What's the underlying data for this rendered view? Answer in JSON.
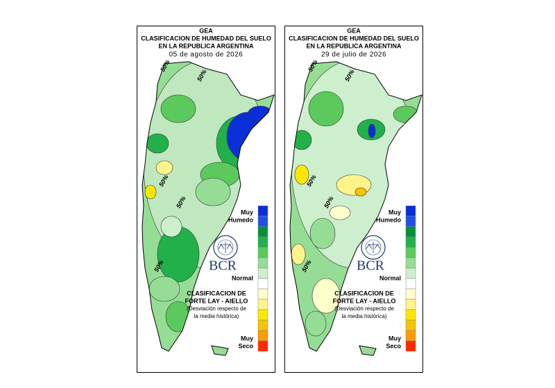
{
  "legend_colors": [
    "#0a2fd8",
    "#1f50e8",
    "#00913a",
    "#22b04a",
    "#5cc95c",
    "#95dd95",
    "#cdefcd",
    "#ffffff",
    "#ffffcc",
    "#fff38a",
    "#ffe600",
    "#f5c400",
    "#ff9a00",
    "#ff2a00"
  ],
  "panels": [
    {
      "header": {
        "org": "GEA",
        "title_lines": [
          "CLASIFICACION DE HUMEDAD DEL SUELO",
          "EN LA REPUBLICA ARGENTINA"
        ],
        "date": "05 de agosto de 2026"
      },
      "contour_labels": [
        "50%",
        "50%",
        "50%",
        "50%",
        "50%"
      ],
      "logo": "BCR",
      "legend": {
        "wet": [
          "Muy",
          "Humedo"
        ],
        "normal": "Normal",
        "dry": [
          "Muy",
          "Seco"
        ]
      },
      "caption": [
        "CLASIFICACION DE",
        "FORTE LAY - AIELLO",
        "(Desviación respecto de",
        "la media histórica)"
      ]
    },
    {
      "header": {
        "org": "GEA",
        "title_lines": [
          "CLASIFICACION DE HUMEDAD DEL SUELO",
          "EN LA REPUBLICA ARGENTINA"
        ],
        "date": "29 de julio de 2026"
      },
      "contour_labels": [
        "50%",
        "50%",
        "50%",
        "50%",
        "50%"
      ],
      "logo": "BCR",
      "legend": {
        "wet": [
          "Muy",
          "Humedo"
        ],
        "normal": "Normal",
        "dry": [
          "Muy",
          "Seco"
        ]
      },
      "caption": [
        "CLASIFICACION DE",
        "FORTE LAY - AIELLO",
        "(Desviación respecto de",
        "la media histórica)"
      ]
    }
  ]
}
